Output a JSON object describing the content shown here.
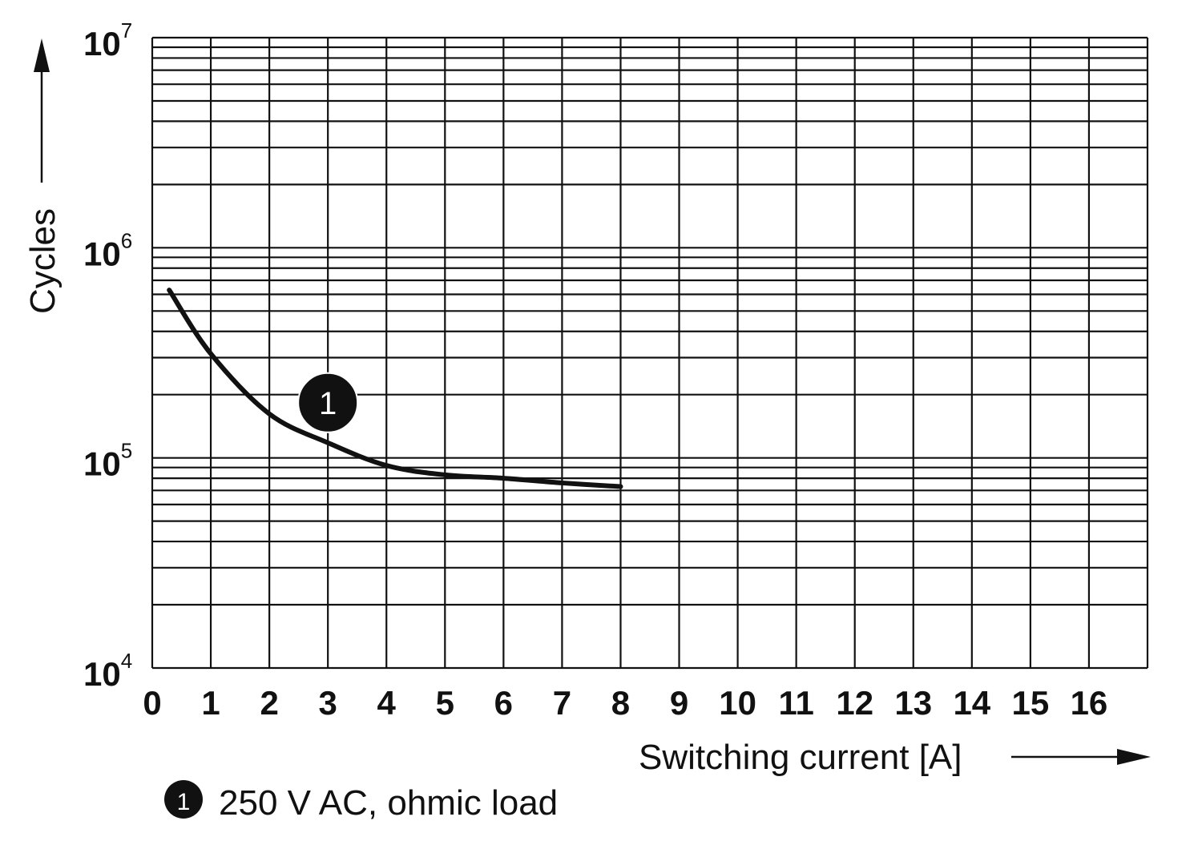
{
  "chart_data": {
    "type": "line",
    "title": "",
    "xlabel": "Switching current [A]",
    "ylabel": "Cycles",
    "xlim": [
      0,
      17
    ],
    "ylim": [
      10000,
      10000000
    ],
    "yscale": "log",
    "grid": true,
    "x_ticks": [
      "0",
      "1",
      "2",
      "3",
      "4",
      "5",
      "6",
      "7",
      "8",
      "9",
      "10",
      "11",
      "12",
      "13",
      "14",
      "15",
      "16"
    ],
    "y_ticks": [
      {
        "base": "10",
        "exp": "4",
        "value": 10000
      },
      {
        "base": "10",
        "exp": "5",
        "value": 100000
      },
      {
        "base": "10",
        "exp": "6",
        "value": 1000000
      },
      {
        "base": "10",
        "exp": "7",
        "value": 10000000
      }
    ],
    "series": [
      {
        "marker_label": "1",
        "x": [
          0.29,
          1,
          2,
          3,
          4,
          5,
          6,
          7,
          8
        ],
        "y": [
          629000,
          313000,
          162000,
          118000,
          92000,
          83000,
          80000,
          76000,
          73000
        ]
      }
    ],
    "legend": [
      {
        "marker": "1",
        "text": "250 V AC, ohmic load"
      }
    ],
    "legend_placement": "bottom-left",
    "line_color": "#111111"
  }
}
